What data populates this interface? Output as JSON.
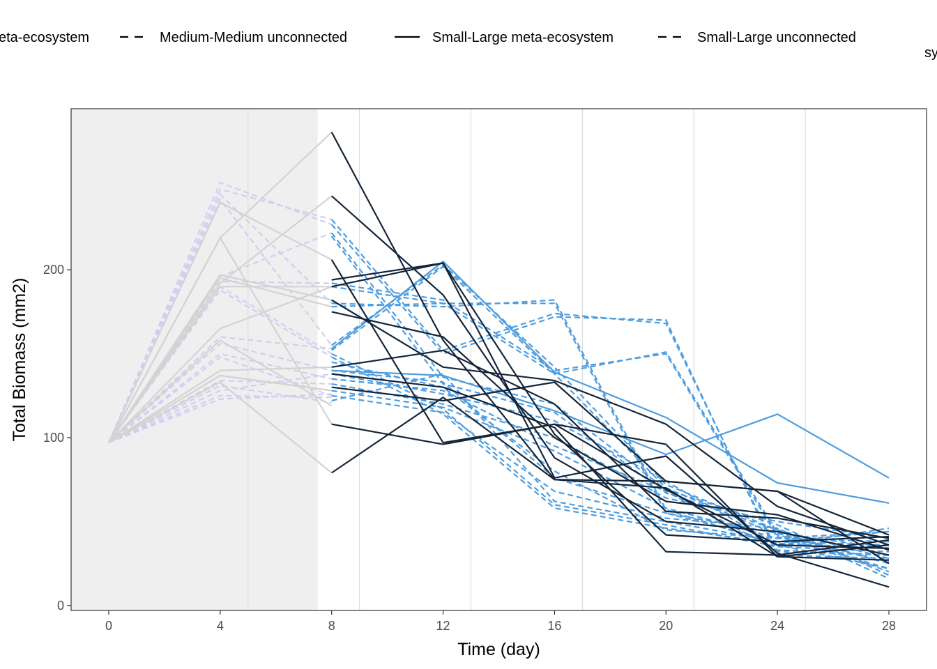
{
  "chart_data": {
    "type": "line",
    "title": "",
    "xlabel": "Time (day)",
    "ylabel": "Total Biomass (mm2)",
    "xlim": [
      -1.35,
      29.35
    ],
    "ylim": [
      -3,
      296
    ],
    "x_ticks": [
      "0",
      "4",
      "8",
      "12",
      "16",
      "20",
      "24",
      "28"
    ],
    "y_ticks": [
      "0",
      "100",
      "200"
    ],
    "shaded_interval": [
      -1.35,
      7.5
    ],
    "legend": {
      "placement": "top",
      "entries": [
        {
          "label": "eta-ecosystem",
          "style": "solid"
        },
        {
          "label": "Medium-Medium unconnected",
          "style": "dashed"
        },
        {
          "label": "Small-Large meta-ecosystem",
          "style": "solid"
        },
        {
          "label": "Small-Large unconnected",
          "style": "dashed"
        }
      ],
      "fragment": "sy"
    },
    "colors": {
      "meta": "#14253a",
      "unconnected": "#4d9de0",
      "pre_solid": "#d3d3d3",
      "pre_dashed": "#cfcff2",
      "shade": "#efefef",
      "grid": "#d9d9d9"
    },
    "x": [
      0,
      4,
      8,
      12,
      16,
      20,
      24,
      28
    ],
    "pre_series": {
      "solid": [
        [
          97,
          219,
          282,
          0,
          0,
          0,
          0,
          0
        ],
        [
          97,
          240,
          206,
          0,
          0,
          0,
          0,
          0
        ],
        [
          97,
          195,
          178,
          0,
          0,
          0,
          0,
          0
        ],
        [
          97,
          197,
          182,
          0,
          0,
          0,
          0,
          0
        ],
        [
          97,
          190,
          190,
          0,
          0,
          0,
          0,
          0
        ],
        [
          97,
          165,
          190,
          0,
          0,
          0,
          0,
          0
        ],
        [
          97,
          158,
          119,
          0,
          0,
          0,
          0,
          0
        ],
        [
          97,
          140,
          142,
          0,
          0,
          0,
          0,
          0
        ],
        [
          97,
          137,
          128,
          0,
          0,
          0,
          0,
          0
        ],
        [
          97,
          133,
          79,
          0,
          0,
          0,
          0,
          0
        ],
        [
          97,
          219,
          108,
          0,
          0,
          0,
          0,
          0
        ],
        [
          97,
          192,
          244,
          0,
          0,
          0,
          0,
          0
        ]
      ],
      "dashed": [
        [
          97,
          252,
          227,
          0,
          0,
          0,
          0,
          0
        ],
        [
          97,
          248,
          230,
          0,
          0,
          0,
          0,
          0
        ],
        [
          97,
          245,
          180,
          0,
          0,
          0,
          0,
          0
        ],
        [
          97,
          242,
          155,
          0,
          0,
          0,
          0,
          0
        ],
        [
          97,
          196,
          222,
          0,
          0,
          0,
          0,
          0
        ],
        [
          97,
          193,
          192,
          0,
          0,
          0,
          0,
          0
        ],
        [
          97,
          190,
          150,
          0,
          0,
          0,
          0,
          0
        ],
        [
          97,
          188,
          148,
          0,
          0,
          0,
          0,
          0
        ],
        [
          97,
          160,
          153,
          0,
          0,
          0,
          0,
          0
        ],
        [
          97,
          156,
          140,
          0,
          0,
          0,
          0,
          0
        ],
        [
          97,
          150,
          135,
          0,
          0,
          0,
          0,
          0
        ],
        [
          97,
          148,
          125,
          0,
          0,
          0,
          0,
          0
        ],
        [
          97,
          137,
          128,
          0,
          0,
          0,
          0,
          0
        ],
        [
          97,
          134,
          132,
          0,
          0,
          0,
          0,
          0
        ],
        [
          97,
          131,
          121,
          0,
          0,
          0,
          0,
          0
        ],
        [
          97,
          128,
          138,
          0,
          0,
          0,
          0,
          0
        ],
        [
          97,
          125,
          124,
          0,
          0,
          0,
          0,
          0
        ],
        [
          97,
          123,
          126,
          0,
          0,
          0,
          0,
          0
        ]
      ]
    },
    "series": [
      {
        "group": "meta",
        "style": "solid",
        "values": [
          null,
          null,
          282,
          158,
          75,
          70,
          29,
          36
        ]
      },
      {
        "group": "meta",
        "style": "solid",
        "values": [
          null,
          null,
          244,
          185,
          88,
          50,
          44,
          30
        ]
      },
      {
        "group": "meta",
        "style": "solid",
        "values": [
          null,
          null,
          206,
          97,
          108,
          96,
          29,
          27
        ]
      },
      {
        "group": "meta",
        "style": "solid",
        "values": [
          null,
          null,
          194,
          204,
          76,
          89,
          31,
          11
        ]
      },
      {
        "group": "meta",
        "style": "solid",
        "values": [
          null,
          null,
          190,
          204,
          102,
          42,
          38,
          41
        ]
      },
      {
        "group": "meta",
        "style": "solid",
        "values": [
          null,
          null,
          182,
          142,
          134,
          108,
          59,
          36
        ]
      },
      {
        "group": "meta",
        "style": "solid",
        "values": [
          null,
          null,
          175,
          160,
          100,
          62,
          54,
          33
        ]
      },
      {
        "group": "meta",
        "style": "solid",
        "values": [
          null,
          null,
          142,
          152,
          120,
          56,
          52,
          40
        ]
      },
      {
        "group": "meta",
        "style": "solid",
        "values": [
          null,
          null,
          138,
          130,
          106,
          32,
          30,
          39
        ]
      },
      {
        "group": "meta",
        "style": "solid",
        "values": [
          null,
          null,
          130,
          122,
          133,
          74,
          68,
          25
        ]
      },
      {
        "group": "meta",
        "style": "solid",
        "values": [
          null,
          null,
          108,
          96,
          108,
          69,
          36,
          34
        ]
      },
      {
        "group": "meta",
        "style": "solid",
        "values": [
          null,
          null,
          79,
          124,
          75,
          74,
          68,
          42
        ]
      },
      {
        "group": "unconnected",
        "style": "solid",
        "values": [
          null,
          null,
          140,
          137,
          116,
          90,
          114,
          76
        ]
      },
      {
        "group": "unconnected",
        "style": "solid",
        "values": [
          null,
          null,
          153,
          205,
          139,
          112,
          73,
          61
        ]
      },
      {
        "group": "unconnected",
        "style": "dashed",
        "values": [
          null,
          null,
          227,
          150,
          172,
          170,
          30,
          28
        ]
      },
      {
        "group": "unconnected",
        "style": "dashed",
        "values": [
          null,
          null,
          230,
          152,
          174,
          168,
          32,
          30
        ]
      },
      {
        "group": "unconnected",
        "style": "dashed",
        "values": [
          null,
          null,
          222,
          136,
          120,
          69,
          48,
          18
        ]
      },
      {
        "group": "unconnected",
        "style": "dashed",
        "values": [
          null,
          null,
          220,
          132,
          115,
          67,
          45,
          20
        ]
      },
      {
        "group": "unconnected",
        "style": "dashed",
        "values": [
          null,
          null,
          192,
          182,
          140,
          150,
          41,
          22
        ]
      },
      {
        "group": "unconnected",
        "style": "dashed",
        "values": [
          null,
          null,
          190,
          180,
          138,
          151,
          43,
          25
        ]
      },
      {
        "group": "unconnected",
        "style": "dashed",
        "values": [
          null,
          null,
          180,
          178,
          182,
          57,
          36,
          46
        ]
      },
      {
        "group": "unconnected",
        "style": "dashed",
        "values": [
          null,
          null,
          178,
          180,
          180,
          55,
          38,
          44
        ]
      },
      {
        "group": "unconnected",
        "style": "dashed",
        "values": [
          null,
          null,
          155,
          203,
          142,
          72,
          45,
          28
        ]
      },
      {
        "group": "unconnected",
        "style": "dashed",
        "values": [
          null,
          null,
          152,
          202,
          138,
          70,
          42,
          26
        ]
      },
      {
        "group": "unconnected",
        "style": "dashed",
        "values": [
          null,
          null,
          150,
          117,
          60,
          48,
          35,
          32
        ]
      },
      {
        "group": "unconnected",
        "style": "dashed",
        "values": [
          null,
          null,
          148,
          114,
          58,
          46,
          37,
          34
        ]
      },
      {
        "group": "unconnected",
        "style": "dashed",
        "values": [
          null,
          null,
          145,
          130,
          80,
          45,
          40,
          38
        ]
      },
      {
        "group": "unconnected",
        "style": "dashed",
        "values": [
          null,
          null,
          140,
          133,
          76,
          55,
          43,
          34
        ]
      },
      {
        "group": "unconnected",
        "style": "dashed",
        "values": [
          null,
          null,
          138,
          126,
          110,
          74,
          36,
          22
        ]
      },
      {
        "group": "unconnected",
        "style": "dashed",
        "values": [
          null,
          null,
          135,
          128,
          95,
          68,
          33,
          30
        ]
      },
      {
        "group": "unconnected",
        "style": "dashed",
        "values": [
          null,
          null,
          132,
          120,
          100,
          64,
          50,
          40
        ]
      },
      {
        "group": "unconnected",
        "style": "dashed",
        "values": [
          null,
          null,
          128,
          118,
          92,
          58,
          40,
          44
        ]
      },
      {
        "group": "unconnected",
        "style": "dashed",
        "values": [
          null,
          null,
          125,
          115,
          68,
          52,
          46,
          16
        ]
      },
      {
        "group": "unconnected",
        "style": "dashed",
        "values": [
          null,
          null,
          122,
          138,
          62,
          50,
          38,
          36
        ]
      }
    ]
  }
}
